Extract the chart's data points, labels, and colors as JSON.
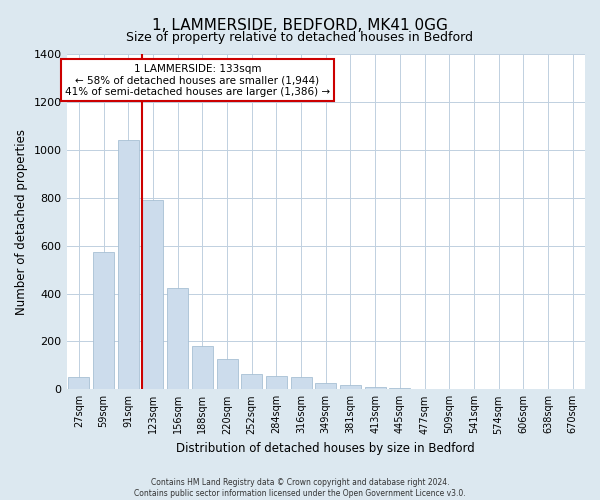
{
  "title": "1, LAMMERSIDE, BEDFORD, MK41 0GG",
  "subtitle": "Size of property relative to detached houses in Bedford",
  "xlabel": "Distribution of detached houses by size in Bedford",
  "ylabel": "Number of detached properties",
  "bar_labels": [
    "27sqm",
    "59sqm",
    "91sqm",
    "123sqm",
    "156sqm",
    "188sqm",
    "220sqm",
    "252sqm",
    "284sqm",
    "316sqm",
    "349sqm",
    "381sqm",
    "413sqm",
    "445sqm",
    "477sqm",
    "509sqm",
    "541sqm",
    "574sqm",
    "606sqm",
    "638sqm",
    "670sqm"
  ],
  "bar_values": [
    50,
    575,
    1040,
    790,
    425,
    180,
    125,
    65,
    55,
    50,
    25,
    20,
    10,
    5,
    3,
    2,
    1,
    0,
    0,
    0,
    0
  ],
  "bar_color": "#ccdcec",
  "bar_edge_color": "#a8c0d4",
  "vline_index": 3,
  "vline_color": "#cc0000",
  "annotation_line1": "1 LAMMERSIDE: 133sqm",
  "annotation_line2": "← 58% of detached houses are smaller (1,944)",
  "annotation_line3": "41% of semi-detached houses are larger (1,386) →",
  "annotation_box_color": "#ffffff",
  "annotation_box_edge": "#cc0000",
  "ylim": [
    0,
    1400
  ],
  "yticks": [
    0,
    200,
    400,
    600,
    800,
    1000,
    1200,
    1400
  ],
  "footer": "Contains HM Land Registry data © Crown copyright and database right 2024.\nContains public sector information licensed under the Open Government Licence v3.0.",
  "bg_color": "#dce8f0",
  "plot_bg_color": "#ffffff",
  "title_fontsize": 11,
  "subtitle_fontsize": 9,
  "grid_color": "#c0d0e0"
}
